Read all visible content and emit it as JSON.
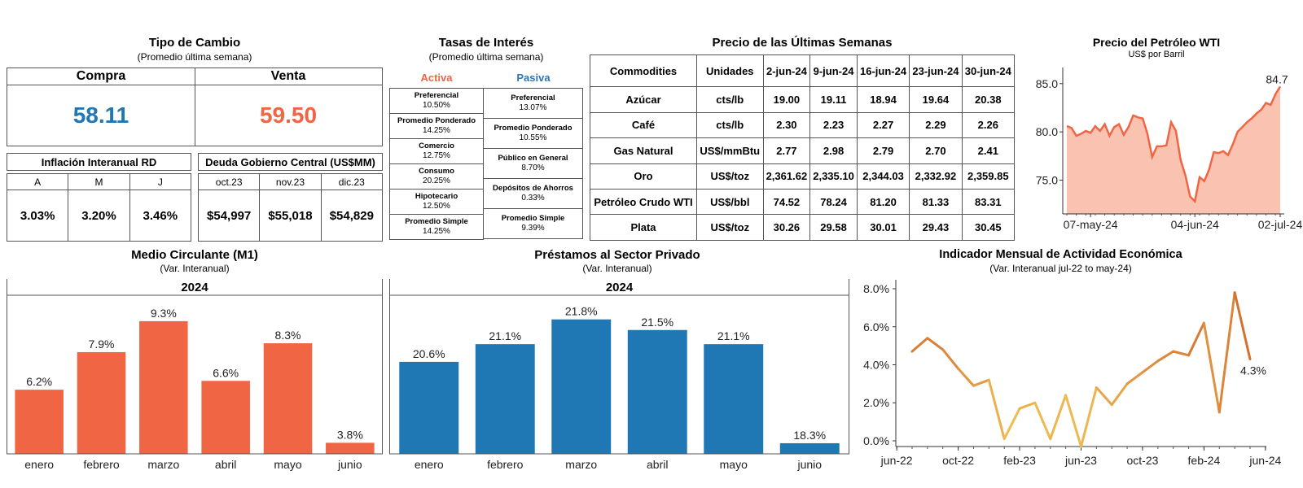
{
  "exchange": {
    "title": "Tipo de Cambio",
    "subtitle": "(Promedio última semana)",
    "buy_label": "Compra",
    "sell_label": "Venta",
    "buy_value": "58.11",
    "sell_value": "59.50",
    "buy_color": "#1f77b4",
    "sell_color": "#f06543"
  },
  "inflation": {
    "title": "Inflación Interanual RD",
    "months": [
      "A",
      "M",
      "J"
    ],
    "values": [
      "3.03%",
      "3.20%",
      "3.46%"
    ]
  },
  "debt": {
    "title": "Deuda Gobierno Central (US$MM)",
    "months": [
      "oct.23",
      "nov.23",
      "dic.23"
    ],
    "values": [
      "$54,997",
      "$55,018",
      "$54,829"
    ]
  },
  "rates": {
    "title": "Tasas de Interés",
    "subtitle": "(Promedio última semana)",
    "active_label": "Activa",
    "passive_label": "Pasiva",
    "active_color": "#f06543",
    "passive_color": "#2e75b6",
    "active": [
      {
        "label": "Preferencial",
        "value": "10.50%"
      },
      {
        "label": "Promedio Ponderado",
        "value": "14.25%"
      },
      {
        "label": "Comercio",
        "value": "12.75%"
      },
      {
        "label": "Consumo",
        "value": "20.25%"
      },
      {
        "label": "Hipotecario",
        "value": "12.50%"
      },
      {
        "label": "Promedio Simple",
        "value": "14.25%"
      }
    ],
    "passive": [
      {
        "label": "Preferencial",
        "value": "13.07%"
      },
      {
        "label": "Promedio Ponderado",
        "value": "10.55%"
      },
      {
        "label": "Público en General",
        "value": "8.70%"
      },
      {
        "label": "Depósitos de Ahorros",
        "value": "0.33%"
      },
      {
        "label": "Promedio Simple",
        "value": "9.39%"
      }
    ]
  },
  "commodities": {
    "title": "Precio de las Últimas Semanas",
    "headers": [
      "Commodities",
      "Unidades",
      "2-jun-24",
      "9-jun-24",
      "16-jun-24",
      "23-jun-24",
      "30-jun-24"
    ],
    "rows": [
      {
        "name": "Azúcar",
        "unit": "cts/lb",
        "values": [
          "19.00",
          "19.11",
          "18.94",
          "19.64",
          "20.38"
        ]
      },
      {
        "name": "Café",
        "unit": "cts/lb",
        "values": [
          "2.30",
          "2.23",
          "2.27",
          "2.29",
          "2.26"
        ]
      },
      {
        "name": "Gas Natural",
        "unit": "US$/mmBtu",
        "values": [
          "2.77",
          "2.98",
          "2.79",
          "2.70",
          "2.41"
        ]
      },
      {
        "name": "Oro",
        "unit": "US$/toz",
        "values": [
          "2,361.62",
          "2,335.10",
          "2,344.03",
          "2,332.92",
          "2,359.85"
        ]
      },
      {
        "name": "Petróleo Crudo WTI",
        "unit": "US$/bbl",
        "values": [
          "74.52",
          "78.24",
          "81.20",
          "81.33",
          "83.31"
        ]
      },
      {
        "name": "Plata",
        "unit": "US$/toz",
        "values": [
          "30.26",
          "29.58",
          "30.01",
          "29.43",
          "30.45"
        ]
      }
    ]
  },
  "chart_data": [
    {
      "id": "wti",
      "type": "area",
      "title": "Precio del Petróleo WTI",
      "subtitle": "US$ por Barril",
      "x_ticks": [
        "07-may-24",
        "04-jun-24",
        "02-jul-24"
      ],
      "y_ticks": [
        "75.0",
        "80.0",
        "85.0"
      ],
      "ylim": [
        71.5,
        86.5
      ],
      "last_label": "84.7",
      "values": [
        80.6,
        80.4,
        79.6,
        79.8,
        80.1,
        79.9,
        80.6,
        80.1,
        80.8,
        79.6,
        80.5,
        80.8,
        79.7,
        80.5,
        81.7,
        81.5,
        81.4,
        79.8,
        77.4,
        78.5,
        78.5,
        78.6,
        81.0,
        80.1,
        77.1,
        75.5,
        73.3,
        72.8,
        75.3,
        74.9,
        76.1,
        77.9,
        77.8,
        78.0,
        77.6,
        78.7,
        80.0,
        80.5,
        81.0,
        81.4,
        81.9,
        82.3,
        83.0,
        82.8,
        83.9,
        84.7
      ],
      "color": "#f06543",
      "fill": "#f9c2b1"
    },
    {
      "id": "m1",
      "type": "bar",
      "title": "Medio Circulante (M1)",
      "subtitle": "(Var. Interanual)",
      "year": "2024",
      "categories": [
        "enero",
        "febrero",
        "marzo",
        "abril",
        "mayo",
        "junio"
      ],
      "values": [
        6.2,
        7.9,
        9.3,
        6.6,
        8.3,
        3.8
      ],
      "labels": [
        "6.2%",
        "7.9%",
        "9.3%",
        "6.6%",
        "8.3%",
        "3.8%"
      ],
      "color": "#f06543",
      "ylim": [
        3.3,
        9.7
      ]
    },
    {
      "id": "credit",
      "type": "bar",
      "title": "Préstamos al Sector Privado",
      "subtitle": "(Var. Interanual)",
      "year": "2024",
      "categories": [
        "enero",
        "febrero",
        "marzo",
        "abril",
        "mayo",
        "junio"
      ],
      "values": [
        20.6,
        21.1,
        21.8,
        21.5,
        21.1,
        18.3
      ],
      "labels": [
        "20.6%",
        "21.1%",
        "21.8%",
        "21.5%",
        "21.1%",
        "18.3%"
      ],
      "color": "#1f77b4",
      "ylim": [
        18.0,
        22.0
      ]
    },
    {
      "id": "imae",
      "type": "line",
      "title": "Indicador Mensual de Actividad Económica",
      "subtitle": "(Var. Interanual jul-22 to may-24)",
      "x_ticks": [
        "jun-22",
        "oct-22",
        "feb-23",
        "jun-23",
        "oct-23",
        "feb-24",
        "jun-24"
      ],
      "y_ticks": [
        "0.0%",
        "2.0%",
        "4.0%",
        "6.0%",
        "8.0%"
      ],
      "ylim": [
        -0.3,
        8.3
      ],
      "values": [
        4.7,
        5.4,
        4.8,
        3.8,
        2.9,
        3.2,
        0.1,
        1.7,
        2.0,
        0.1,
        2.4,
        -0.3,
        2.8,
        1.9,
        3.0,
        3.6,
        4.2,
        4.7,
        4.5,
        6.2,
        1.5,
        7.8,
        4.3
      ],
      "last_label": "4.3%"
    }
  ]
}
